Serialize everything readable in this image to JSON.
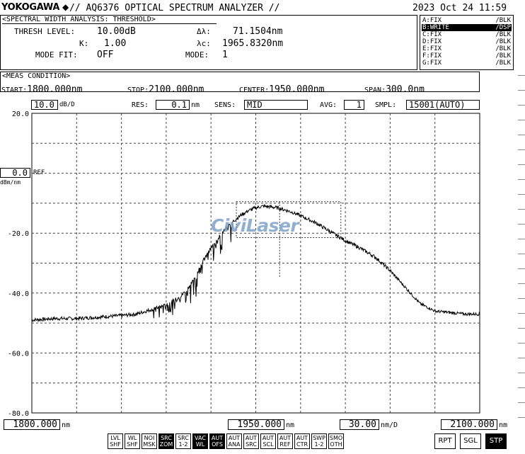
{
  "header": {
    "brand": "YOKOGAWA",
    "title": "// AQ6376 OPTICAL SPECTRUM ANALYZER //",
    "datetime": "2023 Oct 24 11:59"
  },
  "analysis": {
    "heading": "<SPECTRAL WIDTH ANALYSIS: THRESHOLD>",
    "thresh_label": "THRESH LEVEL:",
    "thresh_value": "10.00dB",
    "k_label": "K:",
    "k_value": "1.00",
    "mode_fit_label": "MODE FIT:",
    "mode_fit_value": "OFF",
    "delta_label": "Δλ:",
    "delta_value": "71.1504nm",
    "center_label": "λc:",
    "center_value": "1965.8320nm",
    "mode_label": "MODE:",
    "mode_value": "1"
  },
  "traces": [
    {
      "name": "A:FIX",
      "state": "/BLK",
      "active": false
    },
    {
      "name": "B:WRITE",
      "state": "/DSP",
      "active": true
    },
    {
      "name": "C:FIX",
      "state": "/BLK",
      "active": false
    },
    {
      "name": "D:FIX",
      "state": "/BLK",
      "active": false
    },
    {
      "name": "E:FIX",
      "state": "/BLK",
      "active": false
    },
    {
      "name": "F:FIX",
      "state": "/BLK",
      "active": false
    },
    {
      "name": "G:FIX",
      "state": "/BLK",
      "active": false
    }
  ],
  "meas": {
    "heading": "<MEAS CONDITION>",
    "start_label": "START:",
    "start_value": "1800.000nm",
    "stop_label": "STOP:",
    "stop_value": "2100.000nm",
    "center_label": "CENTER:",
    "center_value": "1950.000nm",
    "span_label": "SPAN:",
    "span_value": "300.0nm"
  },
  "settings": {
    "scale_value": "10.0",
    "scale_unit": "dB/D",
    "res_label": "RES:",
    "res_value": "0.1",
    "res_unit": "nm",
    "sens_label": "SENS:",
    "sens_value": "MID",
    "avg_label": "AVG:",
    "avg_value": "1",
    "smpl_label": "SMPL:",
    "smpl_value": "15001(AUTO)"
  },
  "ref": {
    "value": "0.0",
    "label": "REF",
    "unit": "dBm/nm"
  },
  "footer": {
    "start_value": "1800.000",
    "start_unit": "nm",
    "center_value": "1950.000",
    "center_unit": "nm",
    "span_value": "30.00",
    "span_unit": "nm/D",
    "stop_value": "2100.000",
    "stop_unit": "nm"
  },
  "watermark": "CiviLaser",
  "softkeys": [
    {
      "l1": "LVL",
      "l2": "SHF",
      "active": false
    },
    {
      "l1": "WL",
      "l2": "SHF",
      "active": false
    },
    {
      "l1": "NOI",
      "l2": "MSK",
      "active": false
    },
    {
      "l1": "SRC",
      "l2": "ZOM",
      "active": true
    },
    {
      "l1": "SRC",
      "l2": "1-2",
      "active": false
    },
    {
      "l1": "VAC",
      "l2": "WL",
      "active": true
    },
    {
      "l1": "AUT",
      "l2": "OFS",
      "active": true
    },
    {
      "l1": "AUT",
      "l2": "ANA",
      "active": false
    },
    {
      "l1": "AUT",
      "l2": "SRC",
      "active": false
    },
    {
      "l1": "AUT",
      "l2": "SCL",
      "active": false
    },
    {
      "l1": "AUT",
      "l2": "REF",
      "active": false
    },
    {
      "l1": "AUT",
      "l2": "CTR",
      "active": false
    },
    {
      "l1": "SWP",
      "l2": "1-2",
      "active": false
    },
    {
      "l1": "SMO",
      "l2": "OTH",
      "active": false
    }
  ],
  "sweep_buttons": [
    {
      "label": "RPT",
      "active": false
    },
    {
      "label": "SGL",
      "active": false
    },
    {
      "label": "STP",
      "active": true
    }
  ],
  "chart_data": {
    "type": "line",
    "xlabel": "",
    "ylabel": "",
    "xlim": [
      1800,
      2100
    ],
    "ylim": [
      -80,
      20
    ],
    "y_ticks": [
      "20.0",
      "-20.0",
      "-40.0",
      "-60.0",
      "-80.0"
    ],
    "grid": true,
    "series": [
      {
        "x": [
          1800,
          1815,
          1830,
          1845,
          1860,
          1870,
          1880,
          1890,
          1900,
          1905,
          1910,
          1915,
          1920,
          1925,
          1930,
          1935,
          1940,
          1945,
          1950,
          1955,
          1960,
          1965,
          1970,
          1975,
          1980,
          1990,
          2000,
          2010,
          2020,
          2030,
          2040,
          2050,
          2060,
          2070,
          2080,
          2090,
          2100
        ],
        "values": [
          -49,
          -48.5,
          -48.5,
          -48,
          -47.5,
          -47,
          -45.5,
          -44,
          -41,
          -38,
          -34,
          -29,
          -25,
          -21.5,
          -18.5,
          -16,
          -14,
          -12.5,
          -11.5,
          -11,
          -11.2,
          -11.6,
          -12.3,
          -13.1,
          -14.2,
          -16.5,
          -19.5,
          -22.5,
          -25,
          -28,
          -32.5,
          -38,
          -43.5,
          -46,
          -46.5,
          -47,
          -47
        ]
      }
    ]
  }
}
